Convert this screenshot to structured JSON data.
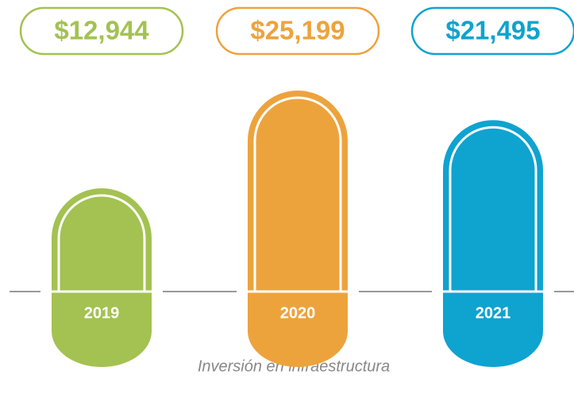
{
  "chart_data": {
    "type": "bar",
    "title": "Inversión en infraestructura",
    "categories": [
      "2019",
      "2020",
      "2021"
    ],
    "values": [
      12944,
      25199,
      21495
    ],
    "value_labels": [
      "$12,944",
      "$25,199",
      "$21,495"
    ],
    "colors": [
      "#a3c251",
      "#eda33c",
      "#0fa3d0"
    ]
  }
}
